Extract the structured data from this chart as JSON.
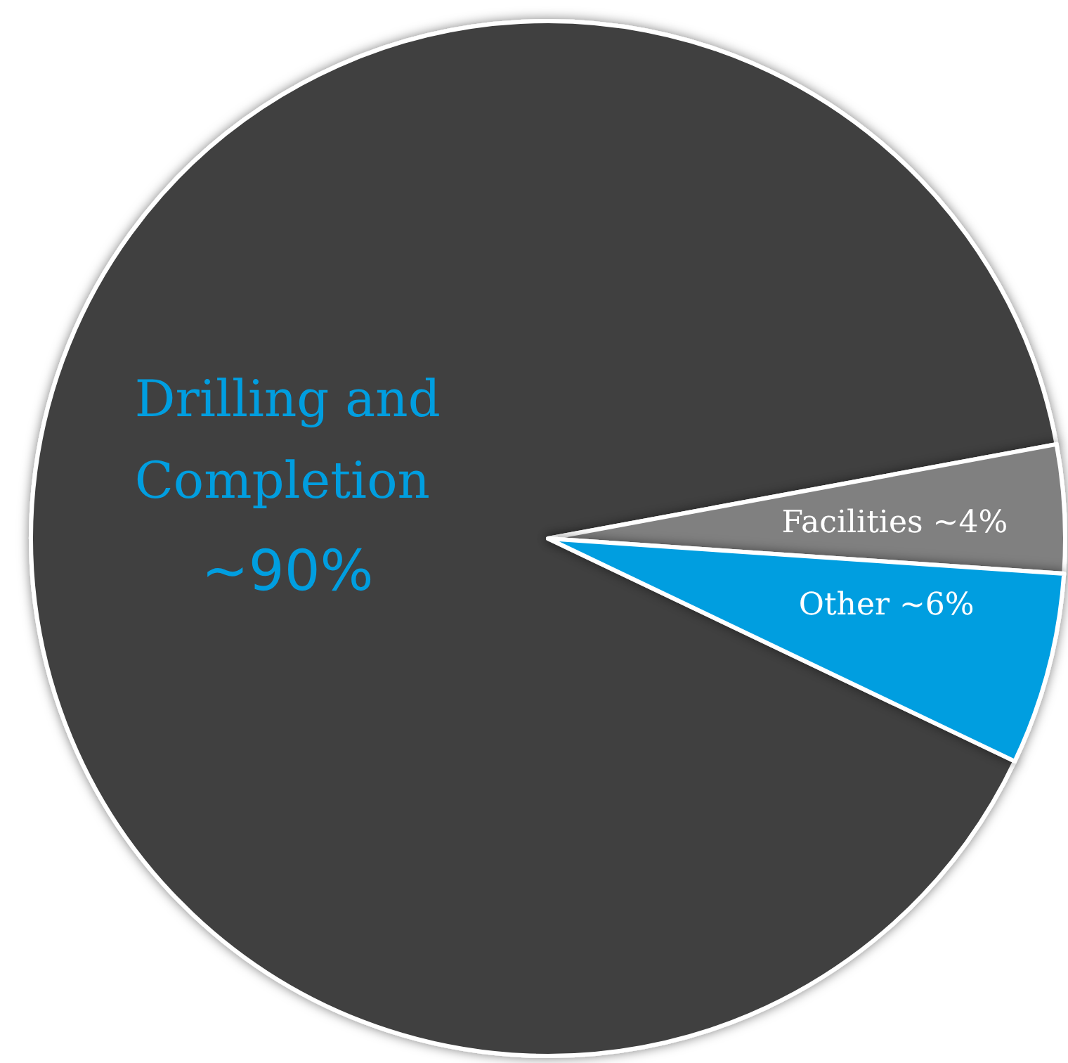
{
  "chart_data": {
    "type": "pie",
    "categories": [
      "Drilling and Completion",
      "Facilities",
      "Other"
    ],
    "values": [
      90,
      4,
      6
    ],
    "colors": [
      "#404040",
      "#808080",
      "#009ee0"
    ],
    "value_labels": [
      "~90%",
      "~4%",
      "~6%"
    ],
    "legend": false
  }
}
